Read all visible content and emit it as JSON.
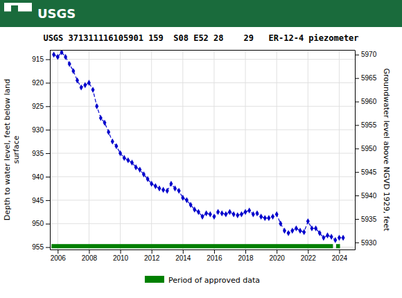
{
  "chart_data": {
    "type": "line",
    "title": "USGS 371311116105901 159  S08 E52 28    29   ER-12-4 piezometer",
    "annotations": [
      "USGS"
    ],
    "color": "#1a6b3c",
    "ylabel": "Depth to water level, feet below land\nsurface",
    "y2label": "Groundwater level above NGVD 1929, feet",
    "xlim": [
      2005.5,
      2025.0
    ],
    "xticks": [
      2006,
      2008,
      2010,
      2012,
      2014,
      2016,
      2018,
      2020,
      2022,
      2024
    ],
    "ylim": [
      955.5,
      913.0
    ],
    "yticks": [
      915,
      920,
      925,
      930,
      935,
      940,
      945,
      950,
      955
    ],
    "y2lim": [
      5928.5,
      5971.0
    ],
    "y2ticks": [
      5930,
      5935,
      5940,
      5945,
      5950,
      5955,
      5960,
      5965,
      5970
    ],
    "grid": true,
    "legend": "bottom",
    "series": [
      {
        "type": "line",
        "color": "#0000cc",
        "marker": "diamond",
        "line_style": "dashed",
        "x": [
          2005.75,
          2006.0,
          2006.25,
          2006.5,
          2006.75,
          2007.0,
          2007.25,
          2007.5,
          2007.75,
          2008.0,
          2008.25,
          2008.5,
          2008.75,
          2009.0,
          2009.25,
          2009.5,
          2009.75,
          2010.0,
          2010.25,
          2010.5,
          2010.75,
          2011.0,
          2011.25,
          2011.5,
          2011.75,
          2012.0,
          2012.25,
          2012.5,
          2012.75,
          2013.0,
          2013.25,
          2013.5,
          2013.75,
          2014.0,
          2014.25,
          2014.5,
          2014.75,
          2015.0,
          2015.25,
          2015.5,
          2015.75,
          2016.0,
          2016.25,
          2016.5,
          2016.75,
          2017.0,
          2017.25,
          2017.5,
          2017.75,
          2018.0,
          2018.25,
          2018.5,
          2018.75,
          2019.0,
          2019.25,
          2019.5,
          2019.75,
          2020.0,
          2020.25,
          2020.5,
          2020.75,
          2021.0,
          2021.25,
          2021.5,
          2021.75,
          2022.0,
          2022.25,
          2022.5,
          2022.75,
          2023.0,
          2023.25,
          2023.5,
          2023.75,
          2024.0,
          2024.25
        ],
        "values": [
          914.0,
          914.5,
          913.5,
          914.5,
          916.0,
          917.5,
          919.5,
          921.0,
          920.5,
          920.0,
          921.5,
          925.0,
          927.5,
          928.5,
          930.5,
          932.5,
          933.5,
          935.0,
          936.0,
          936.5,
          937.0,
          938.0,
          938.5,
          939.5,
          940.5,
          941.5,
          942.0,
          942.5,
          942.8,
          943.0,
          941.5,
          942.5,
          943.0,
          944.5,
          945.0,
          946.0,
          947.0,
          947.5,
          948.5,
          947.8,
          948.0,
          948.5,
          947.5,
          947.8,
          948.0,
          947.5,
          948.0,
          948.2,
          948.0,
          947.5,
          947.2,
          948.0,
          947.8,
          948.5,
          948.8,
          948.8,
          948.5,
          948.0,
          950.0,
          951.5,
          952.0,
          951.5,
          951.0,
          951.5,
          951.8,
          949.5,
          951.0,
          951.0,
          952.0,
          953.0,
          952.5,
          952.8,
          953.5,
          953.0,
          953.0
        ]
      },
      {
        "name": "Period of approved data",
        "type": "band",
        "color": "#008000",
        "pieces": [
          {
            "x": [
              2005.6,
              2023.6
            ],
            "y": [
              954.35,
              955.25
            ]
          },
          {
            "x": [
              2023.8,
              2024.05
            ],
            "y": [
              954.35,
              955.25
            ]
          }
        ]
      }
    ]
  }
}
